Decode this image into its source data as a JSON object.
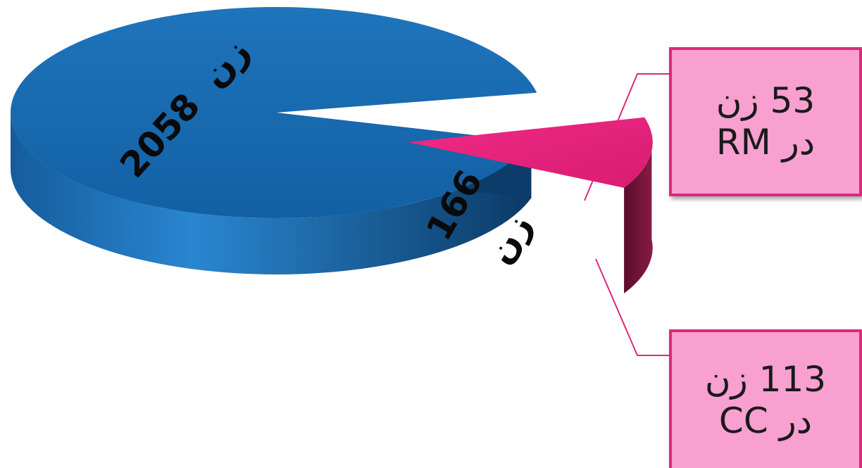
{
  "chart_data": {
    "type": "pie",
    "slices": [
      {
        "value": 2058,
        "label_value": "2058",
        "label_unit": "زن",
        "color": "#1464a8"
      },
      {
        "value": 166,
        "label_value": "166",
        "label_unit": "زن",
        "color": "#e8247c"
      }
    ],
    "breakdown": [
      {
        "value": 53,
        "line1": "53 زن",
        "line2": "در RM"
      },
      {
        "value": 113,
        "line1": "113 زن",
        "line2": "در CC"
      }
    ]
  },
  "colors": {
    "main_slice": "#1464a8",
    "main_side": "#0c3c6a",
    "exploded_slice": "#e8247c",
    "exploded_side": "#6a1030",
    "callout_fill": "#f8a0d0",
    "callout_border": "#e0287c"
  }
}
